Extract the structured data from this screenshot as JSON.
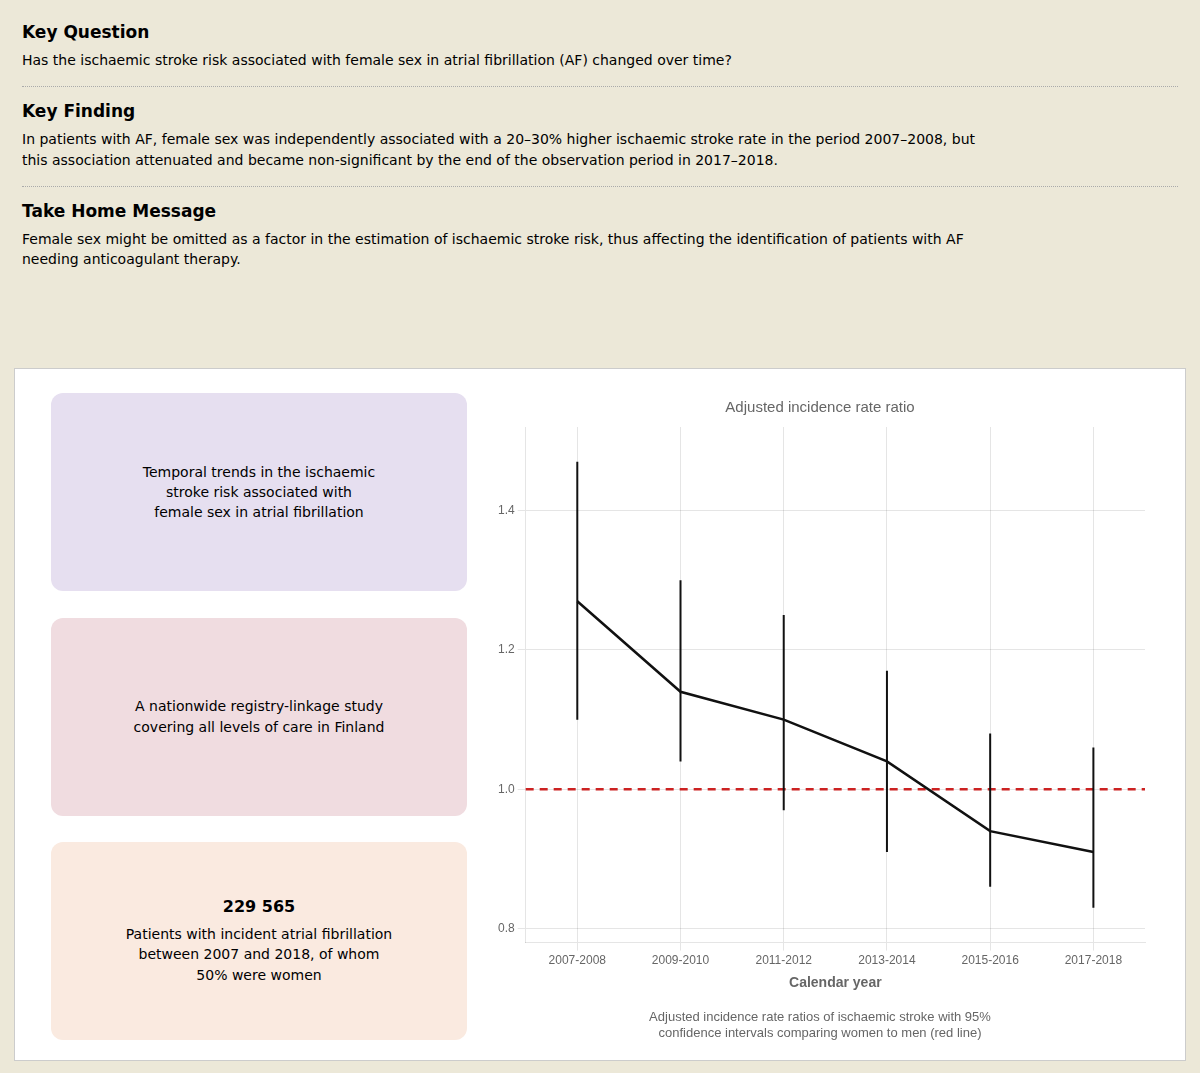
{
  "page": {
    "background": "#ece8d8",
    "panel_background": "#ffffff",
    "separator_color": "#aaaaaa"
  },
  "sections": [
    {
      "title": "Key Question",
      "text": "Has the ischaemic stroke risk associated with female sex in atrial fibrillation (AF) changed over time?"
    },
    {
      "title": "Key Finding",
      "text": "In patients with AF, female sex was independently associated with a 20–30% higher ischaemic stroke rate in the period 2007–2008, but\nthis association attenuated and became non-significant by the end of the observation period in 2017–2018."
    },
    {
      "title": "Take Home Message",
      "text": "Female sex might be omitted as a factor in the estimation of ischaemic stroke risk, thus affecting the identification of patients with AF\nneeding anticoagulant therapy."
    }
  ],
  "boxes": [
    {
      "text": "Temporal trends in the ischaemic\nstroke risk associated with\nfemale sex in atrial fibrillation",
      "color": "#e6dff0"
    },
    {
      "text": "A nationwide registry-linkage study\ncovering all levels of care in Finland",
      "color": "#f0dce0"
    },
    {
      "heading": "229 565",
      "text": "Patients with incident atrial fibrillation\nbetween 2007 and 2018, of whom\n50% were women",
      "color": "#faeae0"
    }
  ],
  "chart_data": {
    "type": "line",
    "title": "Adjusted incidence rate ratio",
    "x_label": "Calendar year",
    "caption": [
      "Adjusted incidence rate ratios of ischaemic stroke with 95%",
      "confidence intervals comparing women to men (red line)"
    ],
    "categories": [
      "2007-2008",
      "2009-2010",
      "2011-2012",
      "2013-2014",
      "2015-2016",
      "2017-2018"
    ],
    "values": [
      1.27,
      1.14,
      1.1,
      1.04,
      0.94,
      0.91
    ],
    "error_low": [
      1.1,
      1.04,
      0.97,
      0.91,
      0.86,
      0.83
    ],
    "error_high": [
      1.47,
      1.3,
      1.25,
      1.17,
      1.08,
      1.06
    ],
    "color": "#111111",
    "marker": "none",
    "reference_lines": [
      {
        "value": 1.0,
        "color": "#cc2222",
        "line_style": "dashed"
      }
    ],
    "ylim": [
      0.78,
      1.52
    ],
    "yticks": [
      0.8,
      {
        "value": 1.0,
        "label": "1.0"
      },
      1.2,
      1.4
    ],
    "grid": true
  }
}
